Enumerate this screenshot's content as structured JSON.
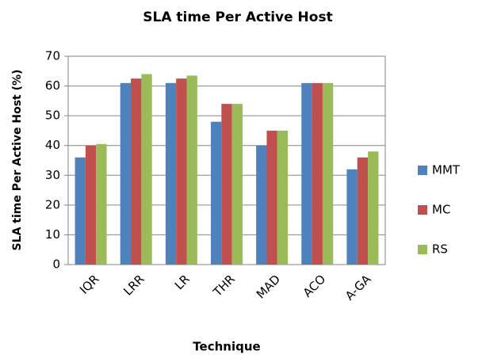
{
  "chart_data": {
    "type": "bar",
    "title": "SLA time Per Active Host",
    "x_label": "Technique",
    "y_label": "SLA time Per Active Host (%)",
    "categories": [
      "IQR",
      "LRR",
      "LR",
      "THR",
      "MAD",
      "ACO",
      "A-GA"
    ],
    "series": [
      {
        "name": "MMT",
        "color": "#4f81bd",
        "values": [
          36,
          61,
          61,
          48,
          40,
          61,
          32
        ]
      },
      {
        "name": "MC",
        "color": "#c0504d",
        "values": [
          40,
          62.5,
          62.5,
          54,
          45,
          61,
          36
        ]
      },
      {
        "name": "RS",
        "color": "#9bbb59",
        "values": [
          40.5,
          64,
          63.5,
          54,
          45,
          61,
          38
        ]
      }
    ],
    "ylim": [
      0,
      70
    ],
    "yticks": [
      0,
      10,
      20,
      30,
      40,
      50,
      60,
      70
    ],
    "grid": true,
    "legend": "right"
  }
}
